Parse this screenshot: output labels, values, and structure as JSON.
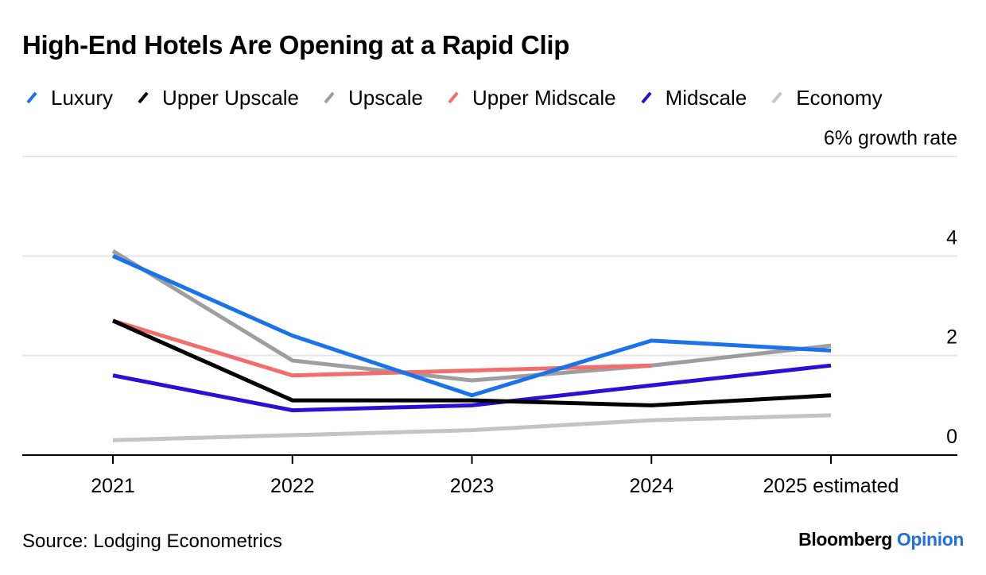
{
  "title": "High-End Hotels Are Opening at a Rapid Clip",
  "source": "Source: Lodging Econometrics",
  "brand": {
    "name": "Bloomberg",
    "suffix": "Opinion",
    "suffix_color": "#1f6fe5"
  },
  "chart_data": {
    "type": "line",
    "title": "High-End Hotels Are Opening at a Rapid Clip",
    "x": [
      "2021",
      "2022",
      "2023",
      "2024",
      "2025 estimated"
    ],
    "ylabel": "6% growth rate",
    "ylim": [
      0,
      6
    ],
    "y_ticks": [
      "0",
      "2",
      "4",
      "6% growth rate"
    ],
    "y_tick_values": [
      0,
      2,
      4,
      6
    ],
    "grid": true,
    "legend_position": "top",
    "series": [
      {
        "name": "Luxury",
        "color": "#1a73e8",
        "values": [
          4.0,
          2.4,
          1.2,
          2.3,
          2.1
        ]
      },
      {
        "name": "Upper Upscale",
        "color": "#000000",
        "values": [
          2.7,
          1.1,
          1.1,
          1.0,
          1.2
        ]
      },
      {
        "name": "Upscale",
        "color": "#9e9e9e",
        "values": [
          4.1,
          1.9,
          1.5,
          1.8,
          2.2
        ]
      },
      {
        "name": "Upper Midscale",
        "color": "#f26d6d",
        "values": [
          2.7,
          1.6,
          1.7,
          1.8,
          null
        ]
      },
      {
        "name": "Midscale",
        "color": "#2b0fd4",
        "values": [
          1.6,
          0.9,
          1.0,
          1.4,
          1.8
        ]
      },
      {
        "name": "Economy",
        "color": "#c4c4c4",
        "values": [
          0.3,
          0.4,
          0.5,
          0.7,
          0.8
        ]
      }
    ]
  }
}
